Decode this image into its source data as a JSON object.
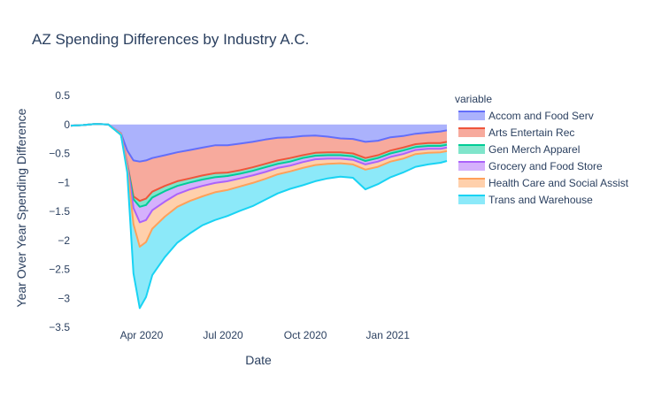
{
  "title": "AZ Spending Differences by Industry A.C.",
  "chart_data": {
    "type": "area",
    "title": "AZ Spending Differences by Industry A.C.",
    "xlabel": "Date",
    "ylabel": "Year Over Year Spending Difference",
    "x_range": [
      "2020-01-13",
      "2021-03-08"
    ],
    "x_ticks": [
      {
        "date": "2020-04-01",
        "label": "Apr 2020"
      },
      {
        "date": "2020-07-01",
        "label": "Jul 2020"
      },
      {
        "date": "2020-10-01",
        "label": "Oct 2020"
      },
      {
        "date": "2021-01-01",
        "label": "Jan 2021"
      }
    ],
    "ylim": [
      -3.5,
      0.5
    ],
    "y_ticks": [
      {
        "value": 0.5,
        "label": "0.5"
      },
      {
        "value": 0,
        "label": "0"
      },
      {
        "value": -0.5,
        "label": "−0.5"
      },
      {
        "value": -1,
        "label": "−1"
      },
      {
        "value": -1.5,
        "label": "−1.5"
      },
      {
        "value": -2,
        "label": "−2"
      },
      {
        "value": -2.5,
        "label": "−2.5"
      },
      {
        "value": -3,
        "label": "−3"
      },
      {
        "value": -3.5,
        "label": "−3.5"
      }
    ],
    "stacked": true,
    "legend_title": "variable",
    "legend_position": "right",
    "dates": [
      "2020-01-13",
      "2020-01-27",
      "2020-02-10",
      "2020-02-24",
      "2020-03-09",
      "2020-03-16",
      "2020-03-23",
      "2020-03-30",
      "2020-04-06",
      "2020-04-13",
      "2020-04-27",
      "2020-05-11",
      "2020-05-25",
      "2020-06-08",
      "2020-06-22",
      "2020-07-06",
      "2020-07-20",
      "2020-08-03",
      "2020-08-17",
      "2020-08-31",
      "2020-09-14",
      "2020-09-28",
      "2020-10-12",
      "2020-10-26",
      "2020-11-09",
      "2020-11-23",
      "2020-12-07",
      "2020-12-21",
      "2021-01-04",
      "2021-01-18",
      "2021-02-01",
      "2021-02-15",
      "2021-03-01",
      "2021-03-08"
    ],
    "series": [
      {
        "name": "Accom and Food Serv",
        "color": "#636efa",
        "fill": "#abb2fc",
        "values": [
          -0.02,
          -0.01,
          0.01,
          0.0,
          -0.15,
          -0.45,
          -0.62,
          -0.64,
          -0.62,
          -0.58,
          -0.53,
          -0.48,
          -0.44,
          -0.4,
          -0.36,
          -0.36,
          -0.33,
          -0.3,
          -0.26,
          -0.23,
          -0.22,
          -0.2,
          -0.19,
          -0.21,
          -0.24,
          -0.25,
          -0.3,
          -0.28,
          -0.22,
          -0.2,
          -0.16,
          -0.14,
          -0.12,
          -0.1
        ]
      },
      {
        "name": "Arts Entertain Rec",
        "color": "#EF553B",
        "fill": "#f7aa9d",
        "values": [
          0.0,
          0.0,
          0.0,
          0.0,
          -0.03,
          -0.22,
          -0.62,
          -0.68,
          -0.66,
          -0.58,
          -0.53,
          -0.5,
          -0.49,
          -0.48,
          -0.48,
          -0.47,
          -0.46,
          -0.44,
          -0.42,
          -0.39,
          -0.36,
          -0.33,
          -0.3,
          -0.27,
          -0.24,
          -0.25,
          -0.28,
          -0.25,
          -0.23,
          -0.2,
          -0.18,
          -0.18,
          -0.2,
          -0.2
        ]
      },
      {
        "name": "Gen Merch Apparel",
        "color": "#00cc96",
        "fill": "#80e5cb",
        "values": [
          0.0,
          0.0,
          0.0,
          0.0,
          0.0,
          -0.01,
          -0.05,
          -0.1,
          -0.11,
          -0.1,
          -0.09,
          -0.08,
          -0.07,
          -0.07,
          -0.07,
          -0.06,
          -0.06,
          -0.06,
          -0.06,
          -0.06,
          -0.06,
          -0.05,
          -0.05,
          -0.05,
          -0.05,
          -0.05,
          -0.05,
          -0.05,
          -0.05,
          -0.05,
          -0.05,
          -0.05,
          -0.05,
          -0.05
        ]
      },
      {
        "name": "Grocery and Food Store",
        "color": "#ab63fa",
        "fill": "#d5b1fc",
        "values": [
          0.0,
          0.0,
          0.0,
          0.0,
          0.02,
          0.0,
          -0.15,
          -0.27,
          -0.26,
          -0.22,
          -0.18,
          -0.14,
          -0.12,
          -0.11,
          -0.1,
          -0.09,
          -0.08,
          -0.08,
          -0.08,
          -0.07,
          -0.07,
          -0.07,
          -0.06,
          -0.06,
          -0.06,
          -0.06,
          -0.06,
          -0.06,
          -0.06,
          -0.06,
          -0.05,
          -0.05,
          -0.05,
          -0.05
        ]
      },
      {
        "name": "Health Care and Social Assist",
        "color": "#FFA15A",
        "fill": "#ffd0ac",
        "values": [
          0.0,
          0.0,
          0.0,
          0.0,
          0.0,
          -0.05,
          -0.28,
          -0.42,
          -0.38,
          -0.32,
          -0.26,
          -0.22,
          -0.2,
          -0.18,
          -0.16,
          -0.15,
          -0.14,
          -0.13,
          -0.12,
          -0.11,
          -0.1,
          -0.1,
          -0.1,
          -0.09,
          -0.08,
          -0.08,
          -0.09,
          -0.09,
          -0.08,
          -0.08,
          -0.07,
          -0.07,
          -0.06,
          -0.06
        ]
      },
      {
        "name": "Trans and Warehouse",
        "color": "#19d3f3",
        "fill": "#8ce9f9",
        "values": [
          0.0,
          0.0,
          0.0,
          0.0,
          -0.02,
          -0.1,
          -0.85,
          -1.06,
          -0.95,
          -0.8,
          -0.7,
          -0.62,
          -0.56,
          -0.5,
          -0.48,
          -0.45,
          -0.42,
          -0.4,
          -0.36,
          -0.33,
          -0.3,
          -0.3,
          -0.28,
          -0.25,
          -0.23,
          -0.23,
          -0.34,
          -0.3,
          -0.27,
          -0.24,
          -0.22,
          -0.2,
          -0.18,
          -0.17
        ]
      }
    ]
  }
}
